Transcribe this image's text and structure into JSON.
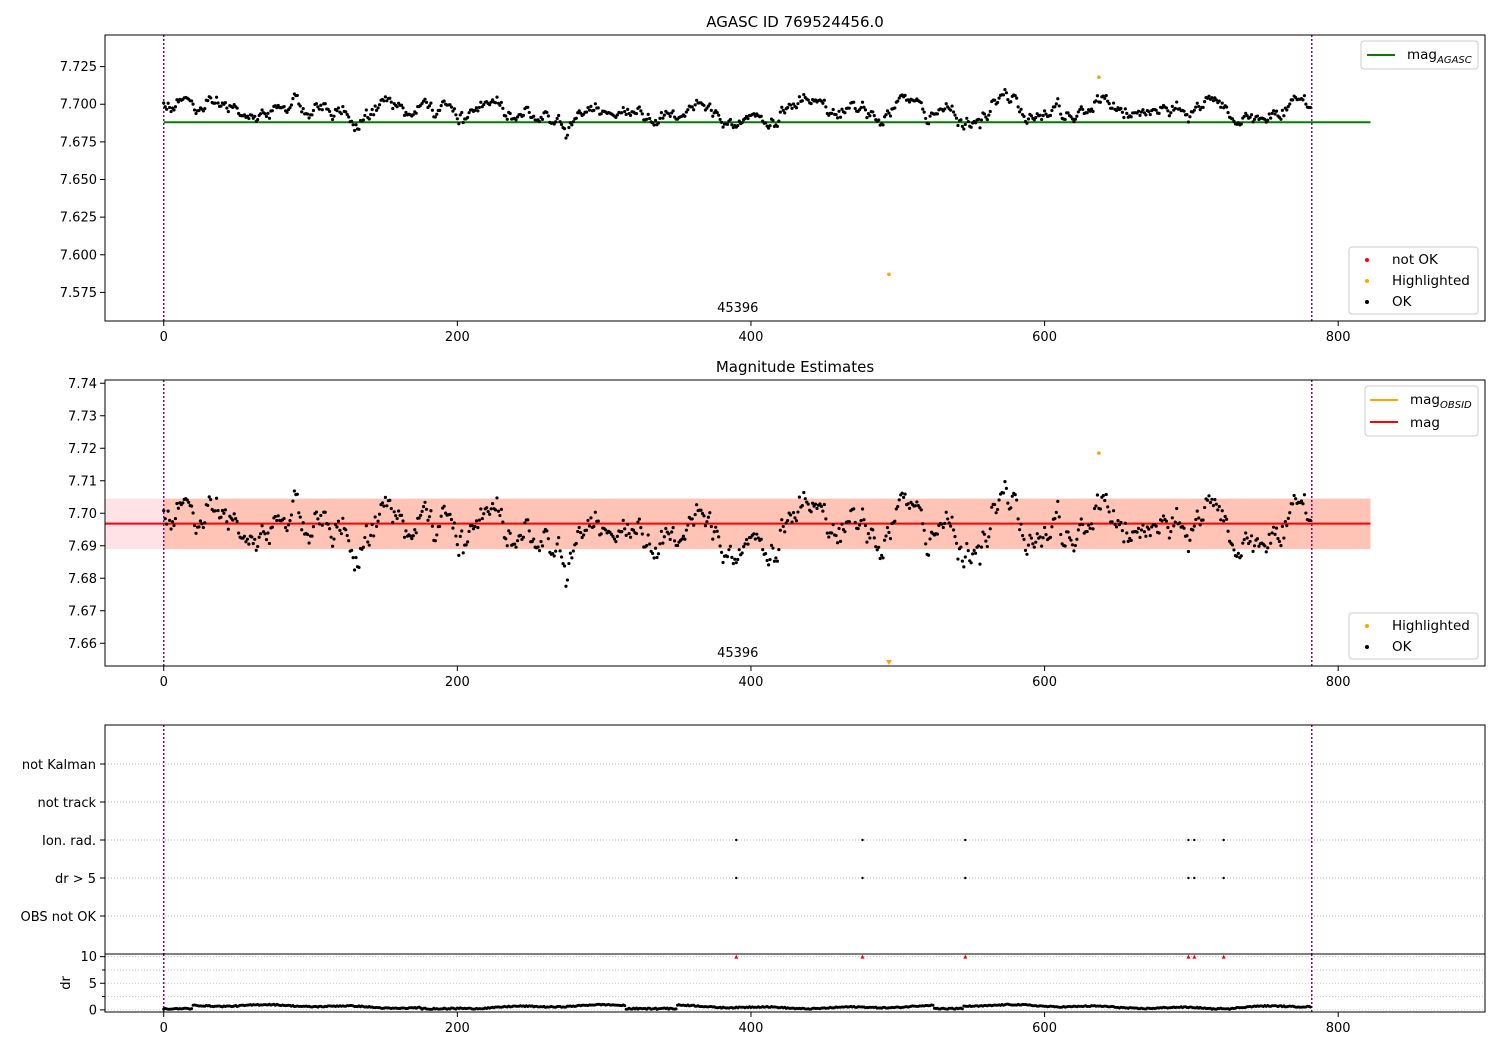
{
  "chart_data": [
    {
      "type": "scatter",
      "title": "AGASC ID 769524456.0",
      "xlim": [
        -40,
        900
      ],
      "ylim": [
        7.556,
        7.746
      ],
      "xticks": [
        0,
        200,
        400,
        600,
        800
      ],
      "yticks": [
        7.575,
        7.6,
        7.625,
        7.65,
        7.675,
        7.7,
        7.725
      ],
      "ytick_labels": [
        "7.575",
        "7.600",
        "7.625",
        "7.650",
        "7.675",
        "7.700",
        "7.725"
      ],
      "vlines": [
        0,
        782
      ],
      "hline": {
        "y": 7.688,
        "x_range": [
          0,
          822
        ],
        "color": "#008000",
        "label": "mag",
        "label_sub": "AGASC"
      },
      "obsid_annotation": {
        "x": 391,
        "text": "45396"
      },
      "series_ok": {
        "name": "OK",
        "color": "#000000",
        "n": 782,
        "start": 7.703,
        "sigma": 0.0055,
        "base": 7.695,
        "wave_period": 35
      },
      "highlighted": [
        {
          "x": 494,
          "y": 7.587
        },
        {
          "x": 637,
          "y": 7.718
        }
      ],
      "legend_top": [
        {
          "label": "mag",
          "sub": "AGASC",
          "color": "#008000",
          "kind": "line"
        }
      ],
      "legend_bottom": [
        {
          "label": "not OK",
          "color": "#ff0000",
          "kind": "dot"
        },
        {
          "label": "Highlighted",
          "color": "#ffa500",
          "kind": "dot"
        },
        {
          "label": "OK",
          "color": "#000000",
          "kind": "dot"
        }
      ]
    },
    {
      "type": "scatter",
      "title": "Magnitude Estimates",
      "xlim": [
        -40,
        900
      ],
      "ylim": [
        7.653,
        7.741
      ],
      "xticks": [
        0,
        200,
        400,
        600,
        800
      ],
      "yticks": [
        7.66,
        7.67,
        7.68,
        7.69,
        7.7,
        7.71,
        7.72,
        7.73,
        7.74
      ],
      "ytick_labels": [
        "7.66",
        "7.67",
        "7.68",
        "7.69",
        "7.70",
        "7.71",
        "7.72",
        "7.73",
        "7.74"
      ],
      "vlines": [
        0,
        782
      ],
      "band_outer": {
        "y0": 7.689,
        "y1": 7.7045,
        "x_range": [
          -40,
          822
        ],
        "color": "#ffb6c1"
      },
      "band_inner": {
        "y0": 7.689,
        "y1": 7.7045,
        "x_range": [
          0,
          822
        ],
        "color": "#ffa07a"
      },
      "hline": {
        "y": 7.6968,
        "x_range": [
          -40,
          822
        ],
        "color": "#ff0000"
      },
      "obsid_annotation": {
        "x": 391,
        "text": "45396"
      },
      "highlighted": [
        {
          "x": 637,
          "y": 7.7185
        }
      ],
      "highlighted_marker": {
        "x": 494,
        "label": "below range"
      },
      "legend_top": [
        {
          "label": "mag",
          "sub": "OBSID",
          "color": "#ffa500",
          "kind": "line"
        },
        {
          "label": "mag",
          "sub": "",
          "color": "#ff0000",
          "kind": "line"
        }
      ],
      "legend_bottom": [
        {
          "label": "Highlighted",
          "color": "#ffa500",
          "kind": "dot"
        },
        {
          "label": "OK",
          "color": "#000000",
          "kind": "dot"
        }
      ]
    },
    {
      "type": "scatter",
      "title": "",
      "xlim": [
        -40,
        900
      ],
      "vlines": [
        0,
        782
      ],
      "flag_rows": [
        "not Kalman",
        "not track",
        "Ion. rad.",
        "dr > 5",
        "OBS not OK"
      ],
      "flag_x": [
        390,
        476,
        546,
        698,
        702,
        722
      ],
      "flag_set_rows": [
        "Ion. rad.",
        "dr > 5"
      ]
    },
    {
      "type": "scatter",
      "title": "",
      "ylabel": "dr",
      "xlim": [
        -40,
        900
      ],
      "ylim": [
        -0.4,
        10.5
      ],
      "xticks": [
        0,
        200,
        400,
        600,
        800
      ],
      "yticks": [
        0,
        5,
        10
      ],
      "ytick_labels": [
        "0",
        "5",
        "10"
      ],
      "vlines": [
        0,
        782
      ],
      "clipped_points_x": [
        390,
        476,
        546,
        698,
        702,
        722
      ],
      "clipped_value": 10,
      "dr_baseline": 0.6,
      "gap_ranges": [
        [
          0,
          20
        ],
        [
          175,
          200
        ],
        [
          315,
          350
        ],
        [
          525,
          545
        ],
        [
          710,
          730
        ]
      ]
    }
  ]
}
